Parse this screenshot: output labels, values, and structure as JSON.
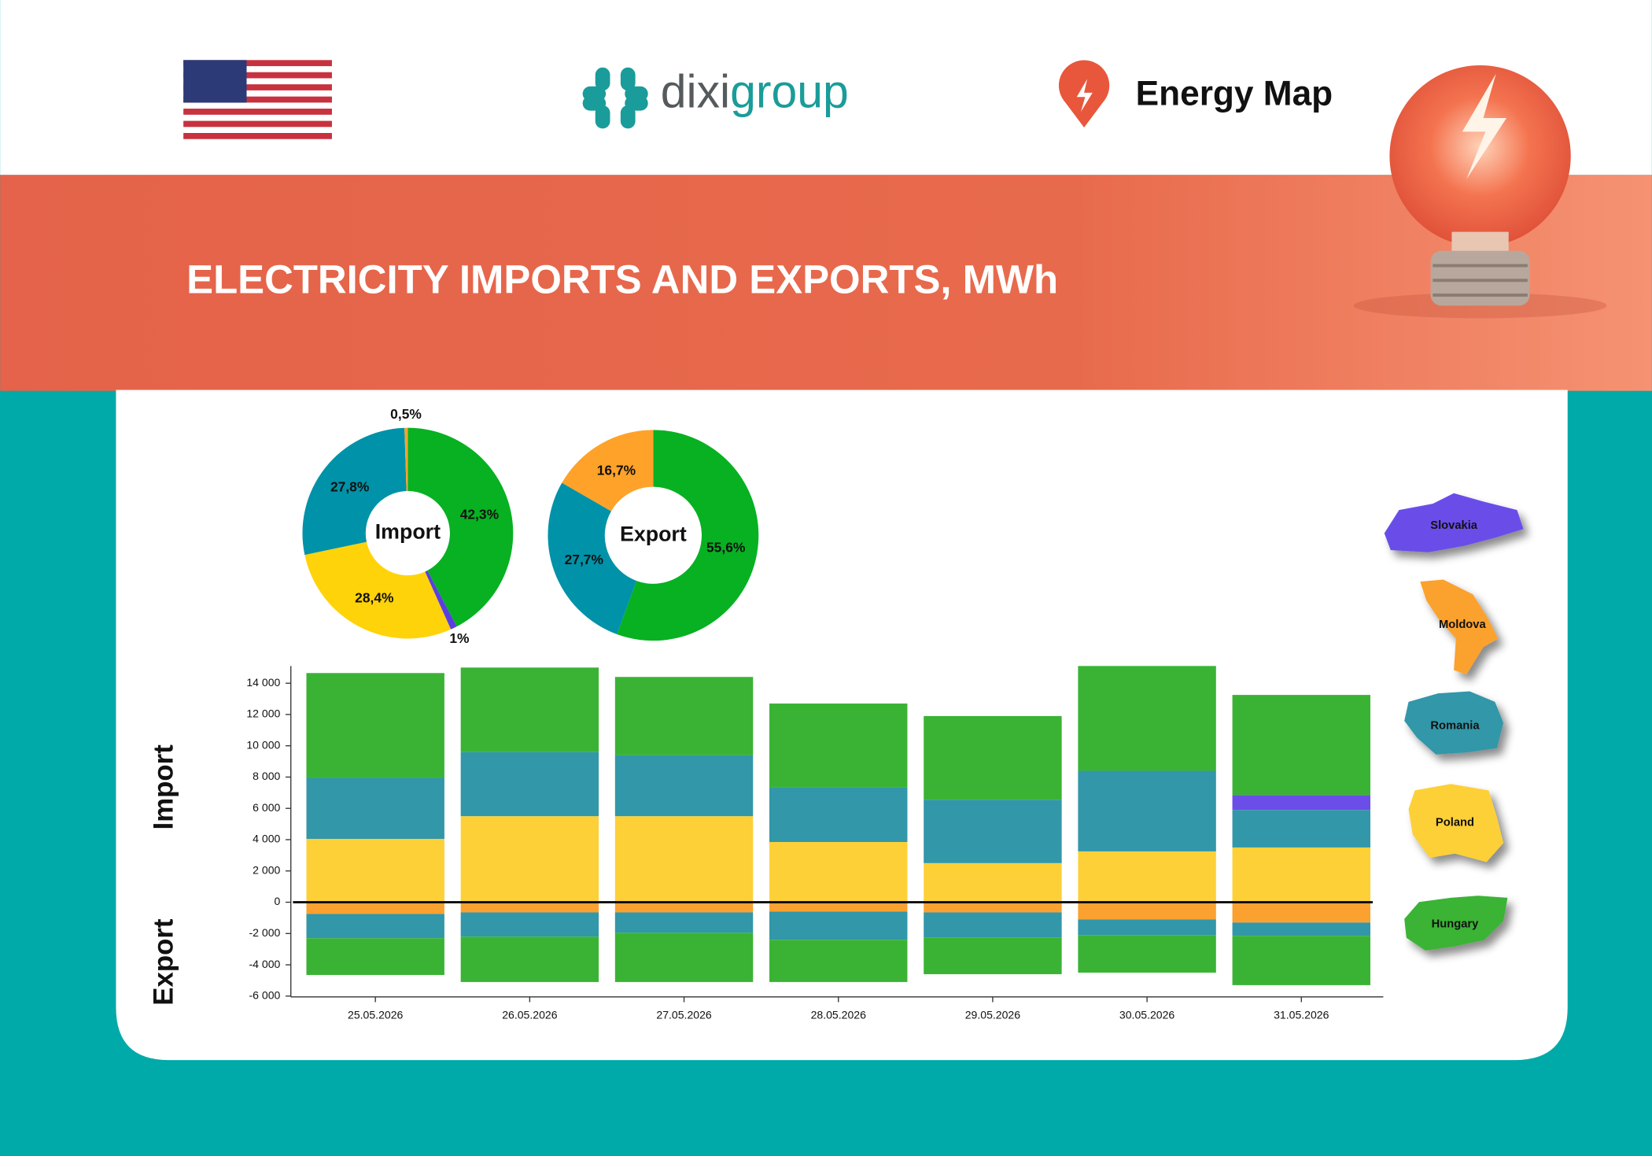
{
  "header": {
    "logo": {
      "part1": "dixi",
      "part2": "group"
    },
    "brand": "Energy Map",
    "title": "ELECTRICITY IMPORTS AND EXPORTS, MWh"
  },
  "chart_data": [
    {
      "type": "donut",
      "title": "Import",
      "values": [
        42.3,
        1,
        28.4,
        27.8,
        0.5
      ],
      "value_labels": [
        "42,3%",
        "1%",
        "28,4%",
        "27,8%",
        "0,5%"
      ],
      "colors": [
        "#07b122",
        "#5a3fe0",
        "#ffd30a",
        "#0092a8",
        "#ffa229"
      ]
    },
    {
      "type": "donut",
      "title": "Export",
      "values": [
        55.6,
        27.7,
        16.7
      ],
      "value_labels": [
        "55,6%",
        "27,7%",
        "16,7%"
      ],
      "colors": [
        "#07b122",
        "#0092a8",
        "#ffa229"
      ]
    },
    {
      "type": "bar",
      "stacked": true,
      "import_label": "Import",
      "export_label": "Export",
      "categories": [
        "25.05.2026",
        "26.05.2026",
        "27.05.2026",
        "28.05.2026",
        "29.05.2026",
        "30.05.2026",
        "31.05.2026"
      ],
      "series": [
        {
          "name": "Slovakia",
          "color": "#6b4ee8",
          "values": [
            null,
            null,
            null,
            null,
            null,
            null,
            950
          ]
        },
        {
          "name": "Moldova",
          "color": "#fba12f",
          "export_values": [
            -750,
            -650,
            -650,
            -600,
            -650,
            -1100,
            -1300
          ]
        },
        {
          "name": "Romania",
          "color": "#3297a8",
          "values": [
            3900,
            4100,
            3900,
            3500,
            4050,
            5150,
            2400
          ],
          "export_values": [
            -1550,
            -1550,
            -1300,
            -1800,
            -1600,
            -1000,
            -850
          ]
        },
        {
          "name": "Poland",
          "color": "#fdd038",
          "values": [
            4050,
            5500,
            5500,
            3850,
            2500,
            3250,
            3500
          ]
        },
        {
          "name": "Hungary",
          "color": "#3ab335",
          "values": [
            6700,
            5400,
            5000,
            5350,
            5350,
            6700,
            6400
          ],
          "export_values": [
            -2350,
            -2900,
            -3150,
            -2700,
            -2350,
            -2400,
            -3150
          ]
        }
      ],
      "ylim": [
        -6050,
        15100
      ],
      "yticks": [
        {
          "value": -6000,
          "label": "-6 000"
        },
        {
          "value": -4000,
          "label": "-4 000"
        },
        {
          "value": -2000,
          "label": "-2 000"
        },
        0,
        {
          "value": 2000,
          "label": "2 000"
        },
        {
          "value": 4000,
          "label": "4 000"
        },
        {
          "value": 6000,
          "label": "6 000"
        },
        {
          "value": 8000,
          "label": "8 000"
        },
        {
          "value": 10000,
          "label": "10 000"
        },
        {
          "value": 12000,
          "label": "12 000"
        },
        {
          "value": 14000,
          "label": "14 000"
        }
      ],
      "zero_line": true
    }
  ]
}
